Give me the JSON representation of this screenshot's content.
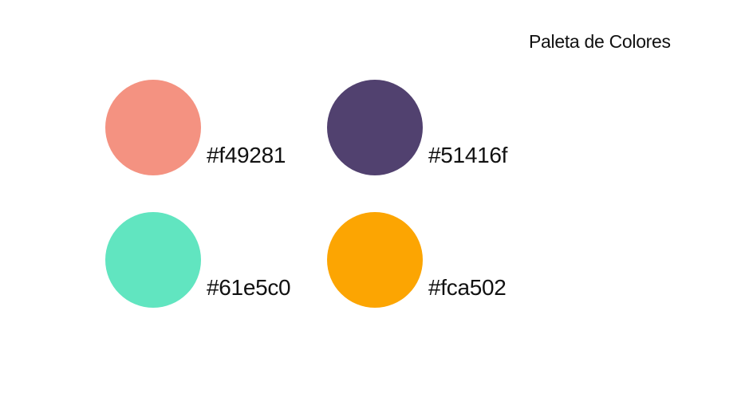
{
  "title": "Paleta de Colores",
  "swatches": [
    {
      "hex": "#f49281",
      "label": "#f49281"
    },
    {
      "hex": "#51416f",
      "label": "#51416f"
    },
    {
      "hex": "#61e5c0",
      "label": "#61e5c0"
    },
    {
      "hex": "#fca502",
      "label": "#fca502"
    }
  ]
}
